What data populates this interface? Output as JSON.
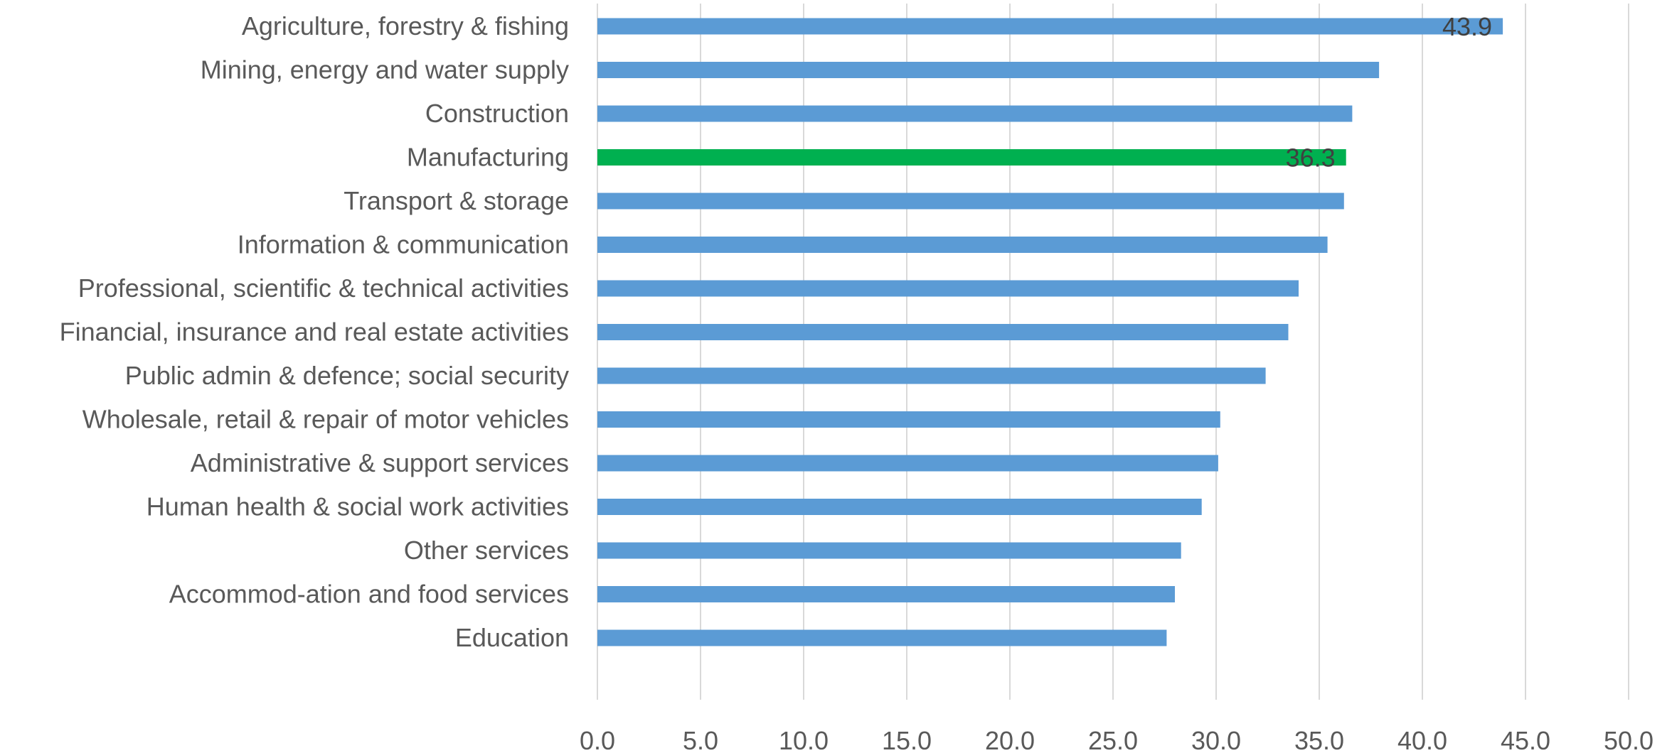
{
  "chart_data": {
    "type": "bar",
    "orientation": "horizontal",
    "categories": [
      "Agriculture, forestry & fishing",
      "Mining, energy and water supply",
      "Construction",
      "Manufacturing",
      "Transport & storage",
      "Information & communication",
      "Professional, scientific & technical activities",
      "Financial,  insurance and real estate activities",
      "Public admin & defence; social security",
      "Wholesale, retail & repair of motor vehicles",
      "Administrative & support services",
      "Human health & social work activities",
      "Other services",
      "Accommod-ation and food services",
      "Education"
    ],
    "values": [
      43.9,
      37.9,
      36.6,
      36.3,
      36.2,
      35.4,
      34.0,
      33.5,
      32.4,
      30.2,
      30.1,
      29.3,
      28.3,
      28.0,
      27.6
    ],
    "data_labels": [
      {
        "category_index": 0,
        "text": "43.9"
      },
      {
        "category_index": 3,
        "text": "36.3"
      }
    ],
    "highlight_index": 3,
    "xlim": [
      0,
      50
    ],
    "xticks": [
      "0.0",
      "5.0",
      "10.0",
      "15.0",
      "20.0",
      "25.0",
      "30.0",
      "35.0",
      "40.0",
      "45.0",
      "50.0"
    ],
    "grid": "vertical",
    "title": "",
    "xlabel": "",
    "ylabel": "",
    "colors": {
      "bar": "#5b9bd5",
      "highlight": "#00b050",
      "grid": "#d9d9d9",
      "text": "#595959"
    }
  }
}
